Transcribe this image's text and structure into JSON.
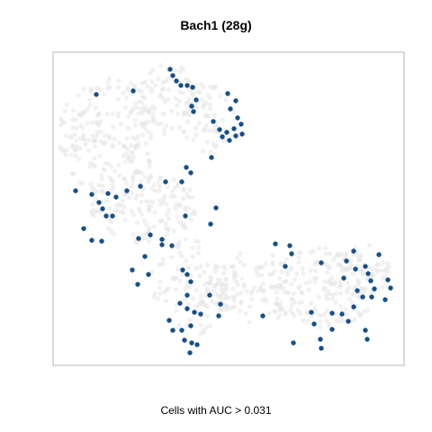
{
  "chart_data": {
    "type": "scatter",
    "title": "Bach1 (28g)",
    "xlabel": "Cells with AUC > 0.031",
    "ylabel": "",
    "grid": false,
    "legend": "none",
    "colors": {
      "background_cells": "#e6e6e6",
      "highlighted_cells": "#16508a"
    },
    "series": [
      {
        "values": [
          [
            189,
            77
          ],
          [
            192,
            84
          ],
          [
            196,
            90
          ],
          [
            201,
            95
          ],
          [
            208,
            95
          ],
          [
            214,
            97
          ],
          [
            213,
            118
          ],
          [
            218,
            111
          ],
          [
            215,
            124
          ],
          [
            148,
            101
          ],
          [
            107,
            105
          ],
          [
            253,
            104
          ],
          [
            262,
            112
          ],
          [
            256,
            121
          ],
          [
            264,
            131
          ],
          [
            268,
            138
          ],
          [
            260,
            143
          ],
          [
            252,
            147
          ],
          [
            255,
            156
          ],
          [
            262,
            151
          ],
          [
            269,
            149
          ],
          [
            237,
            135
          ],
          [
            244,
            144
          ],
          [
            247,
            152
          ],
          [
            235,
            175
          ],
          [
            207,
            186
          ],
          [
            212,
            192
          ],
          [
            202,
            202
          ],
          [
            184,
            202
          ],
          [
            156,
            207
          ],
          [
            141,
            212
          ],
          [
            120,
            215
          ],
          [
            102,
            216
          ],
          [
            84,
            212
          ],
          [
            110,
            225
          ],
          [
            114,
            232
          ],
          [
            118,
            240
          ],
          [
            125,
            240
          ],
          [
            129,
            219
          ],
          [
            93,
            254
          ],
          [
            102,
            267
          ],
          [
            113,
            268
          ],
          [
            206,
            240
          ],
          [
            234,
            249
          ],
          [
            240,
            231
          ],
          [
            154,
            265
          ],
          [
            167,
            261
          ],
          [
            180,
            266
          ],
          [
            191,
            273
          ],
          [
            180,
            272
          ],
          [
            161,
            285
          ],
          [
            147,
            300
          ],
          [
            153,
            316
          ],
          [
            165,
            305
          ],
          [
            203,
            300
          ],
          [
            208,
            305
          ],
          [
            212,
            313
          ],
          [
            208,
            328
          ],
          [
            208,
            343
          ],
          [
            200,
            337
          ],
          [
            216,
            347
          ],
          [
            223,
            349
          ],
          [
            233,
            328
          ],
          [
            245,
            338
          ],
          [
            243,
            351
          ],
          [
            188,
            356
          ],
          [
            192,
            367
          ],
          [
            202,
            367
          ],
          [
            212,
            362
          ],
          [
            205,
            378
          ],
          [
            213,
            381
          ],
          [
            219,
            383
          ],
          [
            211,
            392
          ],
          [
            306,
            271
          ],
          [
            322,
            273
          ],
          [
            324,
            282
          ],
          [
            317,
            296
          ],
          [
            357,
            292
          ],
          [
            385,
            290
          ],
          [
            393,
            279
          ],
          [
            395,
            299
          ],
          [
            406,
            296
          ],
          [
            409,
            304
          ],
          [
            412,
            312
          ],
          [
            382,
            309
          ],
          [
            397,
            323
          ],
          [
            403,
            330
          ],
          [
            413,
            330
          ],
          [
            416,
            321
          ],
          [
            431,
            311
          ],
          [
            434,
            320
          ],
          [
            428,
            333
          ],
          [
            393,
            341
          ],
          [
            380,
            349
          ],
          [
            387,
            357
          ],
          [
            369,
            348
          ],
          [
            369,
            366
          ],
          [
            346,
            347
          ],
          [
            349,
            360
          ],
          [
            356,
            377
          ],
          [
            326,
            381
          ],
          [
            357,
            387
          ],
          [
            406,
            367
          ],
          [
            408,
            377
          ],
          [
            292,
            351
          ],
          [
            421,
            283
          ]
        ]
      }
    ]
  }
}
